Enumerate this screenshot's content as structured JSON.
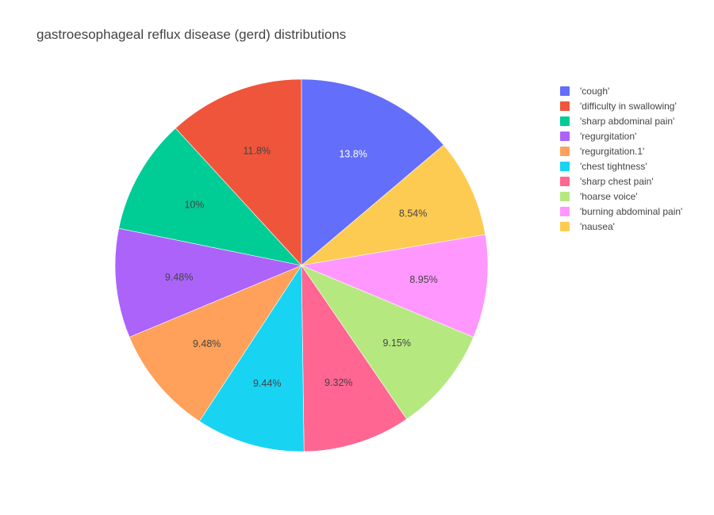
{
  "chart_data": {
    "type": "pie",
    "title": "gastroesophageal reflux disease (gerd) distributions",
    "slices": [
      {
        "label": "'cough'",
        "percent": 13.8,
        "display": "13.8%",
        "color": "#636efa",
        "text_color": "#ffffff"
      },
      {
        "label": "'nausea'",
        "percent": 8.54,
        "display": "8.54%",
        "color": "#fecb52",
        "text_color": "#444444"
      },
      {
        "label": "'burning abdominal pain'",
        "percent": 8.95,
        "display": "8.95%",
        "color": "#ff97ff",
        "text_color": "#444444"
      },
      {
        "label": "'hoarse voice'",
        "percent": 9.15,
        "display": "9.15%",
        "color": "#b6e880",
        "text_color": "#444444"
      },
      {
        "label": "'sharp chest pain'",
        "percent": 9.32,
        "display": "9.32%",
        "color": "#ff6692",
        "text_color": "#444444"
      },
      {
        "label": "'chest tightness'",
        "percent": 9.44,
        "display": "9.44%",
        "color": "#19d3f3",
        "text_color": "#444444"
      },
      {
        "label": "'regurgitation.1'",
        "percent": 9.48,
        "display": "9.48%",
        "color": "#ffa15a",
        "text_color": "#444444"
      },
      {
        "label": "'regurgitation'",
        "percent": 9.48,
        "display": "9.48%",
        "color": "#ab63fa",
        "text_color": "#444444"
      },
      {
        "label": "'sharp abdominal pain'",
        "percent": 10.0,
        "display": "10%",
        "color": "#00cc96",
        "text_color": "#444444"
      },
      {
        "label": "'difficulty in swallowing'",
        "percent": 11.8,
        "display": "11.8%",
        "color": "#ef553b",
        "text_color": "#444444"
      }
    ],
    "legend": {
      "placement": "right",
      "items": [
        {
          "label": "'cough'",
          "color": "#636efa"
        },
        {
          "label": "'difficulty in swallowing'",
          "color": "#ef553b"
        },
        {
          "label": "'sharp abdominal pain'",
          "color": "#00cc96"
        },
        {
          "label": "'regurgitation'",
          "color": "#ab63fa"
        },
        {
          "label": "'regurgitation.1'",
          "color": "#ffa15a"
        },
        {
          "label": "'chest tightness'",
          "color": "#19d3f3"
        },
        {
          "label": "'sharp chest pain'",
          "color": "#ff6692"
        },
        {
          "label": "'hoarse voice'",
          "color": "#b6e880"
        },
        {
          "label": "'burning abdominal pain'",
          "color": "#ff97ff"
        },
        {
          "label": "'nausea'",
          "color": "#fecb52"
        }
      ]
    }
  }
}
